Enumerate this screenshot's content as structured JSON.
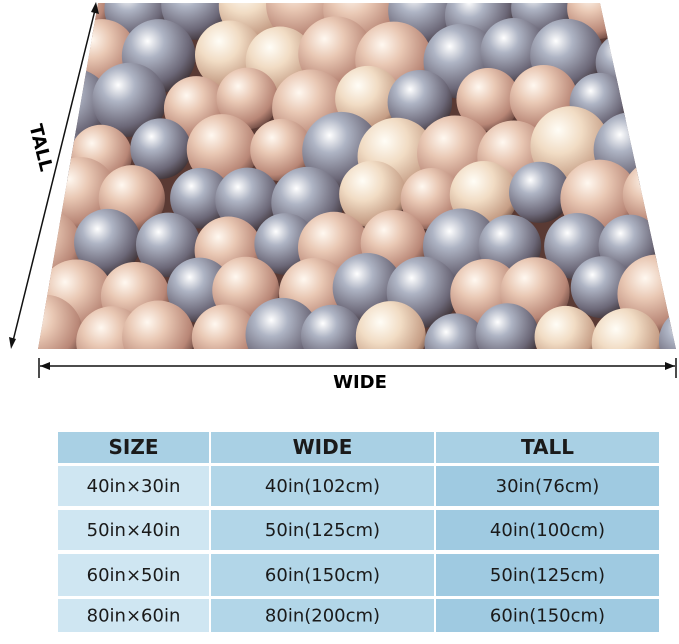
{
  "labels": {
    "tall": "TALL",
    "wide": "WIDE"
  },
  "table": {
    "header": [
      "SIZE",
      "WIDE",
      "TALL"
    ],
    "rows": [
      [
        "40in×30in",
        "40in(102cm)",
        "30in(76cm)"
      ],
      [
        "50in×40in",
        "50in(125cm)",
        "40in(100cm)"
      ],
      [
        "60in×50in",
        "60in(150cm)",
        "50in(125cm)"
      ],
      [
        "80in×60in",
        "80in(200cm)",
        "60in(150cm)"
      ]
    ]
  }
}
